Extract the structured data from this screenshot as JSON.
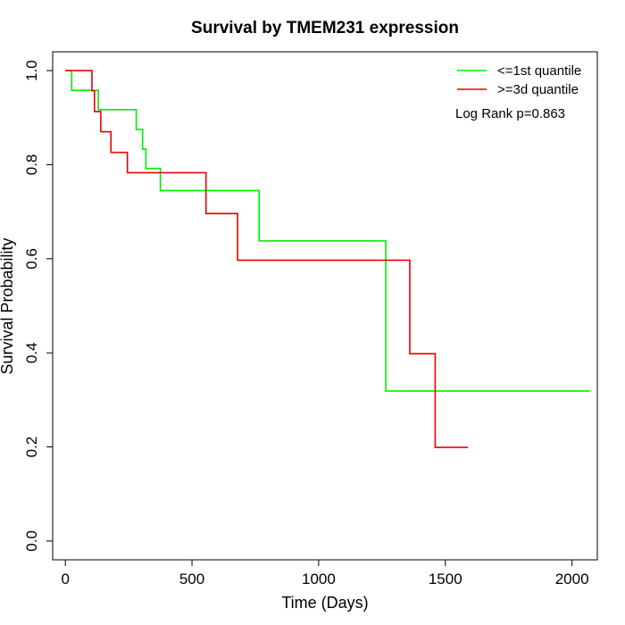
{
  "chart_data": {
    "type": "line",
    "title": "Survival by TMEM231 expression",
    "xlabel": "Time (Days)",
    "ylabel": "Survival Probability",
    "xlim": [
      -50,
      2100
    ],
    "ylim": [
      -0.04,
      1.04
    ],
    "x_ticks": [
      0,
      500,
      1000,
      1500,
      2000
    ],
    "y_ticks": [
      0.0,
      0.2,
      0.4,
      0.6,
      0.8,
      1.0
    ],
    "x_tick_labels": [
      "0",
      "500",
      "1000",
      "1500",
      "2000"
    ],
    "y_tick_labels": [
      "0.0",
      "0.2",
      "0.4",
      "0.6",
      "0.8",
      "1.0"
    ],
    "grid": false,
    "legend_position": "top-right",
    "annotation": "Log Rank p=0.863",
    "series": [
      {
        "name": "<=1st quantile",
        "color": "#00ee00",
        "x": [
          0,
          25,
          25,
          130,
          130,
          280,
          280,
          305,
          305,
          318,
          318,
          375,
          375,
          765,
          765,
          1265,
          1265,
          2070
        ],
        "y": [
          1.0,
          1.0,
          0.958,
          0.958,
          0.917,
          0.917,
          0.875,
          0.875,
          0.833,
          0.833,
          0.792,
          0.792,
          0.745,
          0.745,
          0.638,
          0.638,
          0.319,
          0.319
        ]
      },
      {
        "name": ">=3d quantile",
        "color": "#ee0000",
        "x": [
          0,
          105,
          105,
          115,
          115,
          140,
          140,
          180,
          180,
          245,
          245,
          555,
          555,
          680,
          680,
          1360,
          1360,
          1460,
          1460,
          1590
        ],
        "y": [
          1.0,
          1.0,
          0.957,
          0.957,
          0.913,
          0.913,
          0.87,
          0.87,
          0.826,
          0.826,
          0.783,
          0.783,
          0.696,
          0.696,
          0.597,
          0.597,
          0.398,
          0.398,
          0.199,
          0.199
        ]
      }
    ]
  }
}
